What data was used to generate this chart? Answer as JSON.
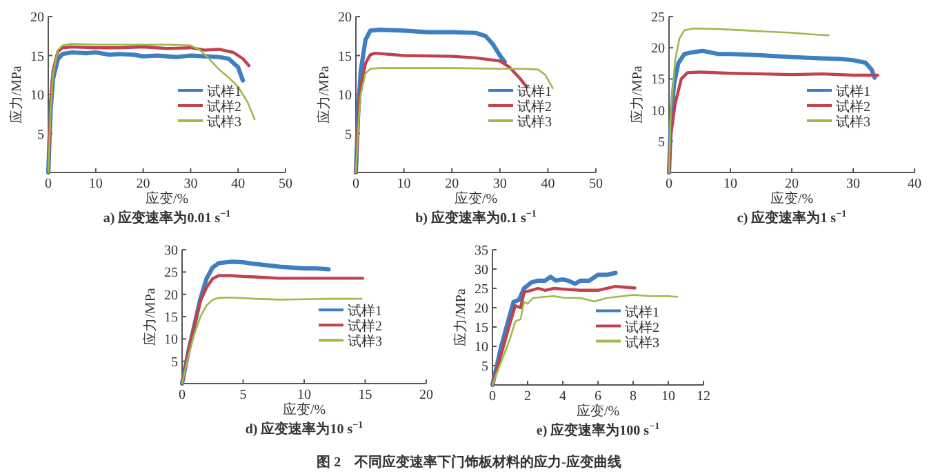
{
  "chart_data": [
    {
      "type": "line",
      "title": "a) 应变速率为0.01 s$^{−1}$",
      "xlabel": "应变/%",
      "ylabel": "应力/MPa",
      "xlim": [
        0,
        50
      ],
      "ylim": [
        0,
        20
      ],
      "xticks": [
        0,
        10,
        20,
        30,
        40,
        50
      ],
      "yticks": [
        5,
        10,
        15,
        20
      ],
      "legend": "right",
      "annotations": [
        "图 2　不同应变速率下门饰板材料的应力-应变曲线"
      ],
      "series": [
        {
          "name": "试样1",
          "color": "#3d7fc0",
          "x": [
            0,
            0.5,
            1,
            2,
            3,
            5,
            8,
            10,
            13,
            15,
            18,
            20,
            23,
            25,
            27,
            30,
            33,
            36,
            38,
            40,
            41
          ],
          "values": [
            0,
            8,
            12,
            14.5,
            15.2,
            15.4,
            15.3,
            15.4,
            15.1,
            15.2,
            15.1,
            14.9,
            15,
            14.9,
            14.8,
            15,
            14.9,
            14.8,
            14.6,
            13.5,
            11.8
          ]
        },
        {
          "name": "试样2",
          "color": "#c2424c",
          "x": [
            0,
            0.5,
            1,
            2,
            3,
            5,
            10,
            15,
            20,
            25,
            30,
            33,
            36,
            39,
            41,
            42.3
          ],
          "values": [
            0,
            9,
            13,
            15.5,
            16,
            16.1,
            16,
            16,
            16.1,
            15.9,
            16,
            15.7,
            15.8,
            15.4,
            14.6,
            13.7
          ]
        },
        {
          "name": "试样3",
          "color": "#9bbb4a",
          "x": [
            0,
            0.5,
            1,
            2,
            3,
            5,
            10,
            15,
            20,
            25,
            30,
            32,
            34,
            36,
            38,
            40,
            42,
            43.5
          ],
          "values": [
            0,
            8,
            12.5,
            15.7,
            16.3,
            16.5,
            16.4,
            16.4,
            16.4,
            16.4,
            16.3,
            15.7,
            14.5,
            13.2,
            12.2,
            11,
            9,
            6.8
          ]
        }
      ]
    },
    {
      "type": "line",
      "title": "b) 应变速率为0.1 s$^{−1}$",
      "xlabel": "应变/%",
      "ylabel": "应力/MPa",
      "xlim": [
        0,
        50
      ],
      "ylim": [
        0,
        20
      ],
      "xticks": [
        0,
        10,
        20,
        30,
        40,
        50
      ],
      "yticks": [
        5,
        10,
        15,
        20
      ],
      "legend": "right",
      "series": [
        {
          "name": "试样1",
          "color": "#3d7fc0",
          "x": [
            0,
            0.5,
            1,
            2,
            3,
            5,
            10,
            15,
            20,
            25,
            27,
            28.5,
            30,
            31
          ],
          "values": [
            0,
            8,
            13,
            17,
            18.2,
            18.3,
            18.2,
            18,
            18,
            17.9,
            17.5,
            16.5,
            15,
            14.2
          ]
        },
        {
          "name": "试样2",
          "color": "#c2424c",
          "x": [
            0,
            0.5,
            1,
            2,
            3,
            4,
            10,
            20,
            25,
            30,
            32,
            34,
            35.5
          ],
          "values": [
            0,
            7,
            11,
            14,
            15.1,
            15.3,
            15,
            14.9,
            14.7,
            14.3,
            13.5,
            12.2,
            11
          ]
        },
        {
          "name": "试样3",
          "color": "#9bbb4a",
          "x": [
            0,
            0.5,
            1,
            2,
            3,
            5,
            10,
            20,
            30,
            35,
            38,
            39.5,
            41
          ],
          "values": [
            0,
            6,
            10,
            12.7,
            13.3,
            13.4,
            13.4,
            13.4,
            13.3,
            13.3,
            13.2,
            12.5,
            10.8
          ]
        }
      ]
    },
    {
      "type": "line",
      "title": "c) 应变速率为1 s$^{−1}$",
      "xlabel": "应变/%",
      "ylabel": "应力/MPa",
      "xlim": [
        0,
        40
      ],
      "ylim": [
        0,
        25
      ],
      "xticks": [
        0,
        10,
        20,
        30,
        40
      ],
      "yticks": [
        5,
        10,
        15,
        20,
        25
      ],
      "legend": "right",
      "series": [
        {
          "name": "试样1",
          "color": "#3d7fc0",
          "x": [
            0,
            0.3,
            0.8,
            1.5,
            2.5,
            4,
            5.5,
            8,
            10,
            15,
            20,
            25,
            28,
            30,
            32,
            33,
            33.5
          ],
          "values": [
            0,
            8,
            14,
            17.5,
            19,
            19.3,
            19.5,
            19,
            19,
            18.8,
            18.5,
            18.3,
            18.2,
            18,
            17.6,
            16.5,
            15.2
          ]
        },
        {
          "name": "试样2",
          "color": "#c2424c",
          "x": [
            0,
            0.3,
            1,
            2,
            3,
            5,
            10,
            15,
            20,
            25,
            30,
            34
          ],
          "values": [
            0,
            6,
            11,
            15,
            16,
            16.1,
            15.9,
            15.8,
            15.7,
            15.8,
            15.6,
            15.6
          ]
        },
        {
          "name": "试样3",
          "color": "#9bbb4a",
          "x": [
            0,
            0.3,
            1,
            1.7,
            2.5,
            4,
            8,
            12,
            16,
            20,
            24,
            26
          ],
          "values": [
            0,
            10,
            18,
            21.5,
            22.8,
            23.1,
            23,
            22.8,
            22.6,
            22.4,
            22.1,
            22
          ]
        }
      ]
    },
    {
      "type": "line",
      "title": "d) 应变速率为10 s$^{−1}$",
      "xlabel": "应变/%",
      "ylabel": "应力/MPa",
      "xlim": [
        0,
        20
      ],
      "ylim": [
        0,
        30
      ],
      "xticks": [
        0,
        5,
        10,
        15,
        20
      ],
      "yticks": [
        5,
        10,
        15,
        20,
        25,
        30
      ],
      "legend": "right",
      "series": [
        {
          "name": "试样1",
          "color": "#3d7fc0",
          "x": [
            0,
            0.5,
            1,
            1.5,
            2,
            2.5,
            3,
            4,
            5,
            6,
            7,
            8,
            9,
            10,
            11,
            12
          ],
          "values": [
            0,
            7,
            13,
            19,
            23.5,
            26,
            27,
            27.3,
            27.2,
            26.8,
            26.5,
            26.2,
            26,
            25.8,
            25.8,
            25.6
          ]
        },
        {
          "name": "试样2",
          "color": "#c2424c",
          "x": [
            0,
            0.5,
            1,
            1.5,
            2,
            2.5,
            3,
            4,
            5,
            6,
            8,
            10,
            12,
            14.8
          ],
          "values": [
            0,
            7,
            13,
            18.5,
            21.5,
            23.5,
            24.2,
            24.2,
            24,
            23.9,
            23.6,
            23.6,
            23.6,
            23.6
          ]
        },
        {
          "name": "试样3",
          "color": "#9bbb4a",
          "x": [
            0,
            0.5,
            1,
            1.5,
            2,
            2.5,
            3,
            4,
            6,
            8,
            10,
            12,
            14.7
          ],
          "values": [
            0,
            6,
            11,
            15,
            17.5,
            18.8,
            19.2,
            19.3,
            19,
            18.8,
            18.9,
            19,
            19
          ]
        }
      ]
    },
    {
      "type": "line",
      "title": "e) 应变速率为100 s$^{−1}$",
      "xlabel": "应变/%",
      "ylabel": "应力/MPa",
      "xlim": [
        0,
        12
      ],
      "ylim": [
        0,
        35
      ],
      "xticks": [
        0,
        2,
        4,
        6,
        8,
        10,
        12
      ],
      "yticks": [
        5,
        10,
        15,
        20,
        25,
        30,
        35
      ],
      "legend": "right",
      "series": [
        {
          "name": "试样1",
          "color": "#3d7fc0",
          "x": [
            0,
            0.3,
            0.5,
            0.8,
            1.2,
            1.5,
            1.8,
            2.2,
            2.6,
            3,
            3.3,
            3.6,
            4,
            4.3,
            4.7,
            5,
            5.5,
            6,
            6.5,
            7
          ],
          "values": [
            0,
            6,
            10,
            15,
            21.5,
            22,
            25,
            26.5,
            27,
            27,
            28,
            27,
            27.3,
            27,
            26.2,
            27,
            27,
            28.5,
            28.5,
            29
          ]
        },
        {
          "name": "试样2",
          "color": "#c2424c",
          "x": [
            0,
            0.5,
            1,
            1.3,
            1.6,
            1.8,
            2.2,
            2.6,
            3,
            3.5,
            4,
            5,
            6,
            7,
            8.1
          ],
          "values": [
            0,
            8,
            16,
            20.5,
            20,
            24,
            24.5,
            25,
            24.5,
            25,
            24.8,
            24.5,
            24.5,
            25.5,
            25.1
          ]
        },
        {
          "name": "试样3",
          "color": "#9bbb4a",
          "x": [
            0,
            0.5,
            1,
            1.3,
            1.6,
            1.8,
            2,
            2.3,
            3,
            3.5,
            4,
            5,
            5.8,
            6.5,
            8,
            9,
            10,
            10.5
          ],
          "values": [
            0,
            6,
            12,
            16.5,
            17,
            21.5,
            21,
            22.5,
            22.8,
            23,
            22.6,
            22.5,
            21.6,
            22.5,
            23.3,
            23,
            23,
            22.8
          ]
        }
      ]
    }
  ]
}
